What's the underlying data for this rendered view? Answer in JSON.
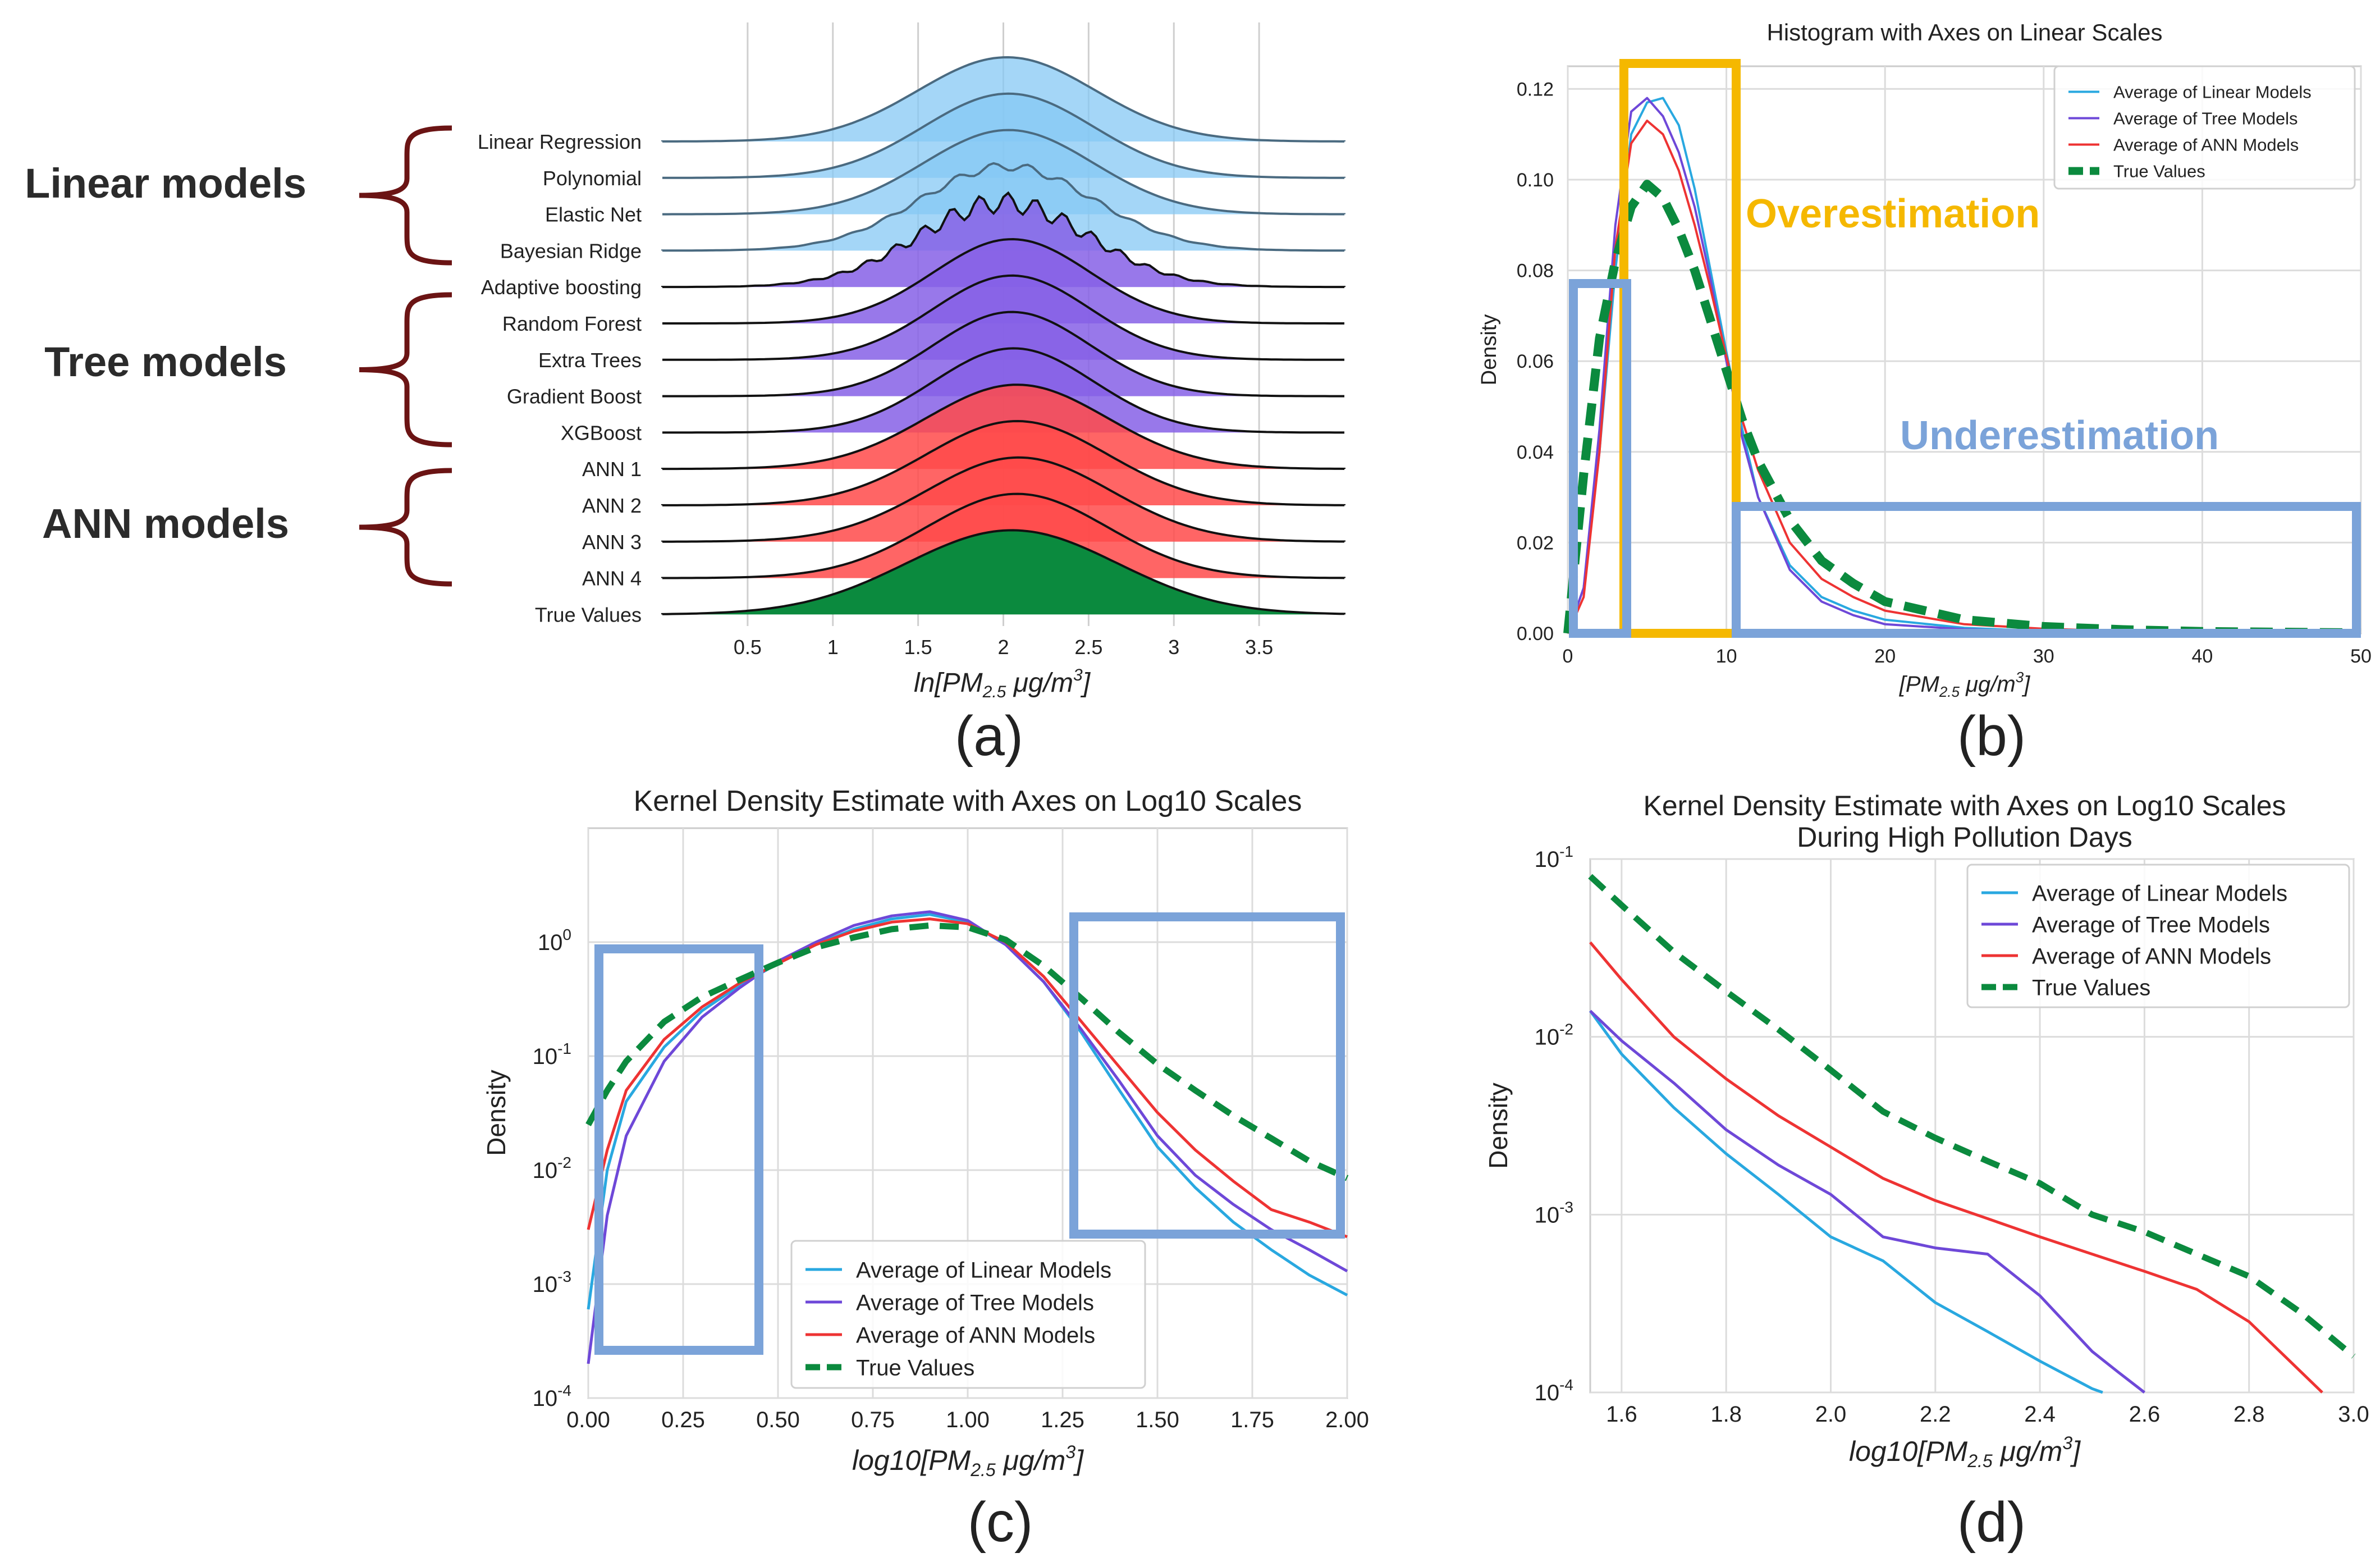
{
  "panel_a": {
    "caption": "(a)",
    "groups": [
      "Linear models",
      "Tree models",
      "ANN models"
    ],
    "xlabel_prefix": "ln[",
    "xlabel_var": "PM",
    "xlabel_sub": "2.5",
    "xlabel_unit": " μg/m",
    "xlabel_sup": "3",
    "xlabel_suffix": "]",
    "colors": {
      "linear": "#86c8f4",
      "tree": "#8660e6",
      "ann": "#ff4a4a",
      "truth": "#0b8a3e",
      "bracket": "#6b1414"
    },
    "chart_data": {
      "type": "ridgeline",
      "title": "",
      "xlabel": "ln[PM2.5 μg/m3]",
      "xlim": [
        0.0,
        4.0
      ],
      "xticks": [
        0.5,
        1.0,
        1.5,
        2.0,
        2.5,
        3.0,
        3.5
      ],
      "series": [
        {
          "name": "Linear Regression",
          "group": "linear",
          "mean": 2.02,
          "sd": 0.52
        },
        {
          "name": "Polynomial",
          "group": "linear",
          "mean": 2.03,
          "sd": 0.5
        },
        {
          "name": "Elastic Net",
          "group": "linear",
          "mean": 2.03,
          "sd": 0.5
        },
        {
          "name": "Bayesian Ridge",
          "group": "linear",
          "mean": 2.02,
          "sd": 0.51
        },
        {
          "name": "Adaptive boosting",
          "group": "tree",
          "mean": 2.0,
          "sd": 0.5
        },
        {
          "name": "Random Forest",
          "group": "tree",
          "mean": 2.05,
          "sd": 0.46
        },
        {
          "name": "Extra Trees",
          "group": "tree",
          "mean": 2.05,
          "sd": 0.46
        },
        {
          "name": "Gradient Boost",
          "group": "tree",
          "mean": 2.05,
          "sd": 0.46
        },
        {
          "name": "XGBoost",
          "group": "tree",
          "mean": 2.06,
          "sd": 0.47
        },
        {
          "name": "ANN 1",
          "group": "ann",
          "mean": 2.08,
          "sd": 0.53
        },
        {
          "name": "ANN 2",
          "group": "ann",
          "mean": 2.08,
          "sd": 0.53
        },
        {
          "name": "ANN 3",
          "group": "ann",
          "mean": 2.09,
          "sd": 0.54
        },
        {
          "name": "ANN 4",
          "group": "ann",
          "mean": 2.08,
          "sd": 0.53
        },
        {
          "name": "True Values",
          "group": "truth",
          "mean": 2.05,
          "sd": 0.62
        }
      ]
    }
  },
  "panel_b": {
    "caption": "(b)",
    "overestimation": "Overestimation",
    "underestimation": "Underestimation",
    "xlabel_prefix": "[",
    "xlabel_var": "PM",
    "xlabel_sub": "2.5",
    "xlabel_unit": " μg/m",
    "xlabel_sup": "3",
    "xlabel_suffix": "]",
    "colors": {
      "linear": "#29a8e0",
      "tree": "#6e48d8",
      "ann": "#ee3333",
      "truth": "#0b8a3e",
      "over": "#f5b800",
      "under": "#7ba3d9"
    },
    "chart_data": {
      "type": "histogram",
      "title": "Histogram with Axes on Linear Scales",
      "xlabel": "[PM2.5 μg/m3]",
      "ylabel": "Density",
      "xlim": [
        0,
        50
      ],
      "ylim": [
        0,
        0.125
      ],
      "xticks": [
        0,
        10,
        20,
        30,
        40,
        50
      ],
      "yticks": [
        "0.00",
        "0.02",
        "0.04",
        "0.06",
        "0.08",
        "0.10",
        "0.12"
      ],
      "legend": "top-right",
      "series": [
        {
          "name": "Average of Linear Models",
          "x": [
            0,
            1,
            2,
            3,
            4,
            5,
            6,
            7,
            8,
            9,
            10,
            11,
            12,
            14,
            16,
            18,
            20,
            25,
            30,
            35,
            40,
            50
          ],
          "y": [
            0,
            0.01,
            0.04,
            0.08,
            0.11,
            0.117,
            0.118,
            0.112,
            0.098,
            0.08,
            0.062,
            0.045,
            0.03,
            0.015,
            0.008,
            0.005,
            0.003,
            0.0012,
            0.0005,
            0.0002,
            0.0001,
            0
          ]
        },
        {
          "name": "Average of Tree Models",
          "x": [
            0,
            1,
            2,
            3,
            4,
            5,
            6,
            7,
            8,
            9,
            10,
            11,
            12,
            14,
            16,
            18,
            20,
            25,
            30,
            35,
            40,
            50
          ],
          "y": [
            0,
            0.01,
            0.045,
            0.09,
            0.115,
            0.118,
            0.114,
            0.106,
            0.094,
            0.078,
            0.06,
            0.043,
            0.03,
            0.014,
            0.007,
            0.004,
            0.002,
            0.0009,
            0.0004,
            0.0002,
            0.0001,
            0
          ]
        },
        {
          "name": "Average of ANN Models",
          "x": [
            0,
            1,
            2,
            3,
            4,
            5,
            6,
            7,
            8,
            9,
            10,
            11,
            12,
            14,
            16,
            18,
            20,
            25,
            30,
            35,
            40,
            50
          ],
          "y": [
            0,
            0.008,
            0.04,
            0.085,
            0.108,
            0.113,
            0.11,
            0.102,
            0.09,
            0.076,
            0.061,
            0.047,
            0.036,
            0.02,
            0.012,
            0.008,
            0.005,
            0.002,
            0.001,
            0.0005,
            0.0002,
            0
          ]
        },
        {
          "name": "True Values",
          "x": [
            0,
            1,
            2,
            3,
            4,
            5,
            6,
            7,
            8,
            9,
            10,
            11,
            12,
            14,
            16,
            18,
            20,
            25,
            30,
            35,
            40,
            50
          ],
          "y": [
            0,
            0.035,
            0.065,
            0.082,
            0.094,
            0.099,
            0.096,
            0.089,
            0.08,
            0.069,
            0.058,
            0.047,
            0.038,
            0.025,
            0.016,
            0.011,
            0.007,
            0.003,
            0.0015,
            0.0008,
            0.0004,
            0.0001
          ]
        }
      ]
    }
  },
  "panel_c": {
    "caption": "(c)",
    "xlabel_prefix": "log10[",
    "xlabel_var": "PM",
    "xlabel_sub": "2.5",
    "xlabel_unit": " μg/m",
    "xlabel_sup": "3",
    "xlabel_suffix": "]",
    "colors": {
      "linear": "#29a8e0",
      "tree": "#6e48d8",
      "ann": "#ee3333",
      "truth": "#0b8a3e",
      "box": "#7ba3d9"
    },
    "chart_data": {
      "type": "line",
      "title": "Kernel Density Estimate with Axes on Log10 Scales",
      "xlabel": "log10[PM2.5 μg/m3]",
      "ylabel": "Density",
      "yscale": "log",
      "xlim": [
        0.0,
        2.0
      ],
      "ylim_exp": [
        -4,
        1
      ],
      "xticks": [
        "0.00",
        "0.25",
        "0.50",
        "0.75",
        "1.00",
        "1.25",
        "1.50",
        "1.75",
        "2.00"
      ],
      "ytick_exps": [
        "-4",
        "-3",
        "-2",
        "-1",
        "0"
      ],
      "ytick_base": "10",
      "legend": "lower-center",
      "series": [
        {
          "name": "Average of Linear Models",
          "x": [
            0,
            0.05,
            0.1,
            0.2,
            0.3,
            0.4,
            0.5,
            0.6,
            0.7,
            0.8,
            0.9,
            1.0,
            1.1,
            1.2,
            1.3,
            1.4,
            1.5,
            1.6,
            1.7,
            1.8,
            1.9,
            2.0
          ],
          "y": [
            0.0006,
            0.01,
            0.04,
            0.12,
            0.25,
            0.42,
            0.65,
            0.95,
            1.3,
            1.6,
            1.75,
            1.5,
            0.95,
            0.45,
            0.16,
            0.05,
            0.016,
            0.007,
            0.0035,
            0.002,
            0.0012,
            0.0008
          ]
        },
        {
          "name": "Average of Tree Models",
          "x": [
            0,
            0.05,
            0.1,
            0.2,
            0.3,
            0.4,
            0.5,
            0.6,
            0.7,
            0.8,
            0.9,
            1.0,
            1.1,
            1.2,
            1.3,
            1.4,
            1.5,
            1.6,
            1.7,
            1.8,
            1.9,
            2.0
          ],
          "y": [
            0.0002,
            0.004,
            0.02,
            0.09,
            0.22,
            0.4,
            0.68,
            1.0,
            1.4,
            1.7,
            1.85,
            1.55,
            0.95,
            0.45,
            0.17,
            0.06,
            0.02,
            0.009,
            0.005,
            0.003,
            0.002,
            0.0013
          ]
        },
        {
          "name": "Average of ANN Models",
          "x": [
            0,
            0.05,
            0.1,
            0.2,
            0.3,
            0.4,
            0.5,
            0.6,
            0.7,
            0.8,
            0.9,
            1.0,
            1.1,
            1.2,
            1.3,
            1.4,
            1.5,
            1.6,
            1.7,
            1.8,
            1.9,
            2.0
          ],
          "y": [
            0.003,
            0.015,
            0.05,
            0.14,
            0.27,
            0.44,
            0.65,
            0.95,
            1.25,
            1.5,
            1.6,
            1.45,
            1.0,
            0.5,
            0.2,
            0.08,
            0.032,
            0.015,
            0.008,
            0.0045,
            0.0035,
            0.0026
          ]
        },
        {
          "name": "True Values",
          "x": [
            0,
            0.05,
            0.1,
            0.2,
            0.3,
            0.4,
            0.5,
            0.6,
            0.7,
            0.8,
            0.9,
            1.0,
            1.1,
            1.2,
            1.3,
            1.4,
            1.5,
            1.6,
            1.7,
            1.8,
            1.9,
            2.0
          ],
          "y": [
            0.025,
            0.05,
            0.09,
            0.2,
            0.33,
            0.47,
            0.66,
            0.9,
            1.1,
            1.3,
            1.4,
            1.35,
            1.05,
            0.62,
            0.32,
            0.16,
            0.085,
            0.05,
            0.03,
            0.019,
            0.012,
            0.0085
          ]
        }
      ]
    }
  },
  "panel_d": {
    "caption": "(d)",
    "xlabel_prefix": "log10[",
    "xlabel_var": "PM",
    "xlabel_sub": "2.5",
    "xlabel_unit": " μg/m",
    "xlabel_sup": "3",
    "xlabel_suffix": "]",
    "title_line1": "Kernel Density Estimate with Axes on Log10 Scales",
    "title_line2": "During High Pollution Days",
    "colors": {
      "linear": "#29a8e0",
      "tree": "#6e48d8",
      "ann": "#ee3333",
      "truth": "#0b8a3e"
    },
    "chart_data": {
      "type": "line",
      "title": "Kernel Density Estimate with Axes on Log10 Scales During High Pollution Days",
      "xlabel": "log10[PM2.5 μg/m3]",
      "ylabel": "Density",
      "yscale": "log",
      "xlim": [
        1.54,
        3.0
      ],
      "ylim_exp": [
        -4,
        -1
      ],
      "xticks": [
        "1.6",
        "1.8",
        "2.0",
        "2.2",
        "2.4",
        "2.6",
        "2.8",
        "3.0"
      ],
      "ytick_exps": [
        "-4",
        "-3",
        "-2",
        "-1"
      ],
      "ytick_base": "10",
      "legend": "top-right",
      "series": [
        {
          "name": "Average of Linear Models",
          "x": [
            1.54,
            1.6,
            1.7,
            1.8,
            1.9,
            2.0,
            2.1,
            2.2,
            2.3,
            2.4,
            2.5,
            2.52
          ],
          "y": [
            0.014,
            0.008,
            0.004,
            0.0022,
            0.0013,
            0.00075,
            0.00055,
            0.00032,
            0.00022,
            0.00015,
            0.000105,
            0.0001
          ]
        },
        {
          "name": "Average of Tree Models",
          "x": [
            1.54,
            1.6,
            1.7,
            1.8,
            1.9,
            2.0,
            2.1,
            2.2,
            2.3,
            2.4,
            2.5,
            2.55,
            2.6
          ],
          "y": [
            0.014,
            0.0095,
            0.0055,
            0.003,
            0.0019,
            0.0013,
            0.00075,
            0.00065,
            0.0006,
            0.00035,
            0.00017,
            0.00013,
            0.0001
          ]
        },
        {
          "name": "Average of ANN Models",
          "x": [
            1.54,
            1.6,
            1.7,
            1.8,
            1.9,
            2.0,
            2.1,
            2.2,
            2.3,
            2.4,
            2.5,
            2.6,
            2.7,
            2.8,
            2.9,
            2.94
          ],
          "y": [
            0.034,
            0.021,
            0.01,
            0.0058,
            0.0036,
            0.0024,
            0.0016,
            0.0012,
            0.00095,
            0.00075,
            0.0006,
            0.00048,
            0.00038,
            0.00025,
            0.00013,
            0.0001
          ]
        },
        {
          "name": "True Values",
          "x": [
            1.54,
            1.6,
            1.7,
            1.8,
            1.9,
            2.0,
            2.1,
            2.2,
            2.3,
            2.4,
            2.5,
            2.6,
            2.7,
            2.8,
            2.9,
            3.0
          ],
          "y": [
            0.08,
            0.055,
            0.03,
            0.018,
            0.011,
            0.0065,
            0.0038,
            0.0027,
            0.002,
            0.0015,
            0.001,
            0.0008,
            0.0006,
            0.00045,
            0.00028,
            0.00016
          ]
        }
      ]
    }
  }
}
